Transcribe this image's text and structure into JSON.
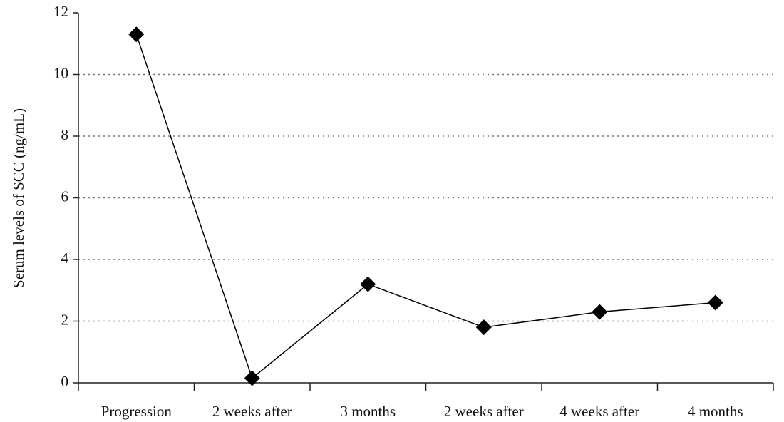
{
  "chart_data": {
    "type": "line",
    "y_label": "Serum levels of SCC (ng/mL)",
    "categories": [
      "Progression",
      "2 weeks after",
      "3 months",
      "2 weeks after",
      "4 weeks after",
      "4 months"
    ],
    "series": [
      {
        "color": "#000000",
        "values": [
          11.3,
          0.15,
          3.2,
          1.8,
          2.3,
          2.6
        ]
      }
    ],
    "ylim": [
      0,
      12
    ],
    "yticks": [
      0,
      2,
      4,
      6,
      8,
      10,
      12
    ],
    "grid": true
  }
}
